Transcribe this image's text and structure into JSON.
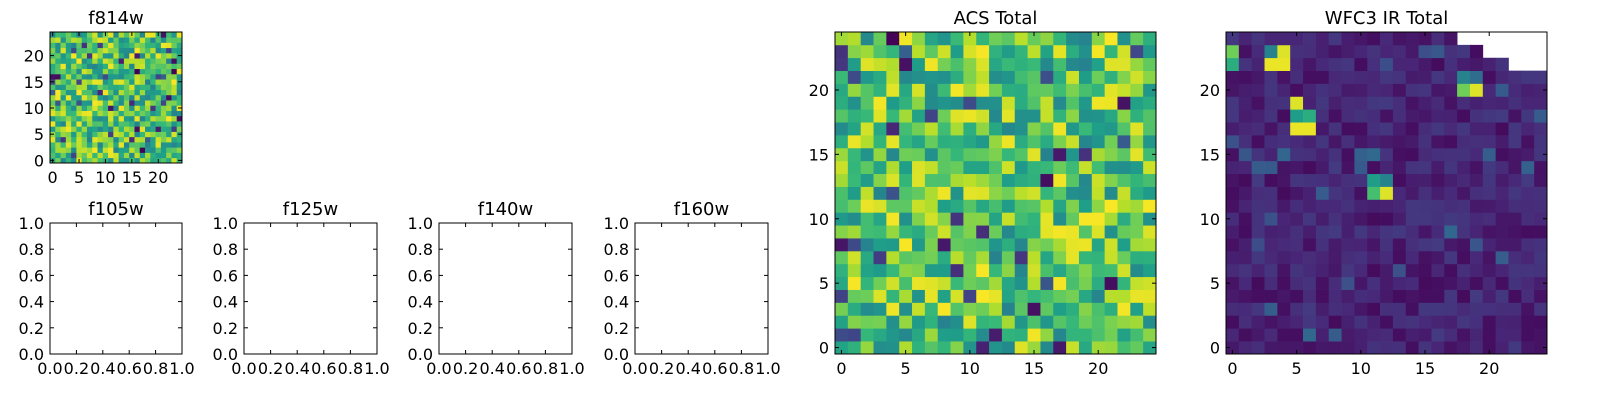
{
  "chart_data": [
    {
      "type": "heatmap",
      "title": "f814w",
      "xlim": [
        -0.5,
        24.5
      ],
      "ylim": [
        -0.5,
        24.5
      ],
      "xticks": [
        0,
        5,
        10,
        15,
        20
      ],
      "yticks": [
        0,
        5,
        10,
        15,
        20
      ],
      "grid": false,
      "colormap": "viridis",
      "seed": 7,
      "bias": 0.72
    },
    {
      "type": "heatmap",
      "title": "f105w",
      "empty": true,
      "xlim": [
        0,
        1
      ],
      "ylim": [
        0,
        1
      ],
      "xticks": [
        0.0,
        0.2,
        0.4,
        0.6,
        0.8,
        1.0
      ],
      "yticks": [
        0.0,
        0.2,
        0.4,
        0.6,
        0.8,
        1.0
      ]
    },
    {
      "type": "heatmap",
      "title": "f125w",
      "empty": true,
      "xlim": [
        0,
        1
      ],
      "ylim": [
        0,
        1
      ],
      "xticks": [
        0.0,
        0.2,
        0.4,
        0.6,
        0.8,
        1.0
      ],
      "yticks": [
        0.0,
        0.2,
        0.4,
        0.6,
        0.8,
        1.0
      ]
    },
    {
      "type": "heatmap",
      "title": "f140w",
      "empty": true,
      "xlim": [
        0,
        1
      ],
      "ylim": [
        0,
        1
      ],
      "xticks": [
        0.0,
        0.2,
        0.4,
        0.6,
        0.8,
        1.0
      ],
      "yticks": [
        0.0,
        0.2,
        0.4,
        0.6,
        0.8,
        1.0
      ]
    },
    {
      "type": "heatmap",
      "title": "f160w",
      "empty": true,
      "xlim": [
        0,
        1
      ],
      "ylim": [
        0,
        1
      ],
      "xticks": [
        0.0,
        0.2,
        0.4,
        0.6,
        0.8,
        1.0
      ],
      "yticks": [
        0.0,
        0.2,
        0.4,
        0.6,
        0.8,
        1.0
      ]
    },
    {
      "type": "heatmap",
      "title": "ACS Total",
      "xlim": [
        -0.5,
        24.5
      ],
      "ylim": [
        -0.5,
        24.5
      ],
      "xticks": [
        0,
        5,
        10,
        15,
        20
      ],
      "yticks": [
        0,
        5,
        10,
        15,
        20
      ],
      "grid": false,
      "colormap": "viridis",
      "seed": 11,
      "bias": 0.72
    },
    {
      "type": "heatmap",
      "title": "WFC3 IR Total",
      "xlim": [
        -0.5,
        24.5
      ],
      "ylim": [
        -0.5,
        24.5
      ],
      "xticks": [
        0,
        5,
        10,
        15,
        20
      ],
      "yticks": [
        0,
        5,
        10,
        15,
        20
      ],
      "grid": false,
      "colormap": "viridis",
      "seed": 23,
      "bias": 0.1,
      "hotspots": [
        {
          "x": 0,
          "y": 23,
          "v": 0.78
        },
        {
          "x": 0,
          "y": 22,
          "v": 0.62
        },
        {
          "x": 3,
          "y": 23,
          "v": 0.45
        },
        {
          "x": 4,
          "y": 23,
          "v": 0.95
        },
        {
          "x": 3,
          "y": 22,
          "v": 0.97
        },
        {
          "x": 4,
          "y": 22,
          "v": 0.97
        },
        {
          "x": 18,
          "y": 21,
          "v": 0.45
        },
        {
          "x": 19,
          "y": 21,
          "v": 0.35
        },
        {
          "x": 18,
          "y": 20,
          "v": 0.78
        },
        {
          "x": 19,
          "y": 20,
          "v": 0.95
        },
        {
          "x": 5,
          "y": 19,
          "v": 0.95
        },
        {
          "x": 5,
          "y": 18,
          "v": 0.55
        },
        {
          "x": 6,
          "y": 18,
          "v": 0.62
        },
        {
          "x": 5,
          "y": 17,
          "v": 0.97
        },
        {
          "x": 6,
          "y": 17,
          "v": 0.97
        },
        {
          "x": 11,
          "y": 13,
          "v": 0.55
        },
        {
          "x": 12,
          "y": 13,
          "v": 0.45
        },
        {
          "x": 11,
          "y": 12,
          "v": 0.7
        },
        {
          "x": 12,
          "y": 12,
          "v": 0.95
        }
      ],
      "masked": [
        {
          "x": 18,
          "y": 24
        },
        {
          "x": 19,
          "y": 24
        },
        {
          "x": 20,
          "y": 24
        },
        {
          "x": 21,
          "y": 24
        },
        {
          "x": 22,
          "y": 24
        },
        {
          "x": 23,
          "y": 24
        },
        {
          "x": 24,
          "y": 24
        },
        {
          "x": 20,
          "y": 23
        },
        {
          "x": 21,
          "y": 23
        },
        {
          "x": 22,
          "y": 23
        },
        {
          "x": 23,
          "y": 23
        },
        {
          "x": 24,
          "y": 23
        },
        {
          "x": 22,
          "y": 22
        },
        {
          "x": 23,
          "y": 22
        },
        {
          "x": 24,
          "y": 22
        }
      ]
    }
  ]
}
